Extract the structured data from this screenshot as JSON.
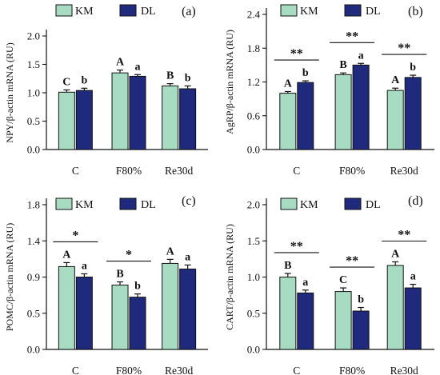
{
  "legend": {
    "km_label": "KM",
    "dl_label": "DL"
  },
  "colors": {
    "km": "#a7dcc3",
    "dl": "#1f2a7c",
    "axis": "#111111"
  },
  "chart_data": [
    {
      "panel": "(a)",
      "type": "bar",
      "ylabel": "NPY/β-actin mRNA (RU)",
      "ylim": [
        0,
        2.0
      ],
      "yticks": [
        "0.0",
        "0.5",
        "1.0",
        "1.5",
        "2.0"
      ],
      "categories": [
        "C",
        "F80%",
        "Re30d"
      ],
      "series": [
        {
          "name": "KM",
          "values": [
            1.01,
            1.35,
            1.12
          ],
          "errors": [
            0.04,
            0.05,
            0.04
          ],
          "letters": [
            "C",
            "A",
            "B"
          ]
        },
        {
          "name": "DL",
          "values": [
            1.04,
            1.29,
            1.07
          ],
          "errors": [
            0.04,
            0.03,
            0.05
          ],
          "letters": [
            "b",
            "a",
            "b"
          ]
        }
      ],
      "significance": []
    },
    {
      "panel": "(b)",
      "type": "bar",
      "ylabel": "AgRP/β-actin mRNA (RU)",
      "ylim": [
        0,
        2.4
      ],
      "yticks": [
        "0.0",
        "0.6",
        "1.2",
        "1.8",
        "2.4"
      ],
      "categories": [
        "C",
        "F80%",
        "Re30d"
      ],
      "series": [
        {
          "name": "KM",
          "values": [
            1.0,
            1.33,
            1.05
          ],
          "errors": [
            0.03,
            0.03,
            0.04
          ],
          "letters": [
            "A",
            "B",
            "A"
          ]
        },
        {
          "name": "DL",
          "values": [
            1.19,
            1.5,
            1.28
          ],
          "errors": [
            0.03,
            0.03,
            0.04
          ],
          "letters": [
            "b",
            "a",
            "b"
          ]
        }
      ],
      "significance": [
        "**",
        "**",
        "**"
      ]
    },
    {
      "panel": "(c)",
      "type": "bar",
      "ylabel": "POMC/β-actin mRNA (RU)",
      "ylim": [
        0,
        1.8
      ],
      "yticks": [
        "0.0",
        "0.5",
        "0.9",
        "1.4",
        "1.8"
      ],
      "categories": [
        "C",
        "F80%",
        "Re30d"
      ],
      "series": [
        {
          "name": "KM",
          "values": [
            1.03,
            0.8,
            1.07
          ],
          "errors": [
            0.05,
            0.04,
            0.05
          ],
          "letters": [
            "A",
            "B",
            "A"
          ]
        },
        {
          "name": "DL",
          "values": [
            0.9,
            0.65,
            1.0
          ],
          "errors": [
            0.04,
            0.04,
            0.05
          ],
          "letters": [
            "a",
            "b",
            "a"
          ]
        }
      ],
      "significance": [
        "*",
        "*",
        ""
      ]
    },
    {
      "panel": "(d)",
      "type": "bar",
      "ylabel": "CART/β-actin mRNA (RU)",
      "ylim": [
        0,
        2.0
      ],
      "yticks": [
        "0.0",
        "0.5",
        "1.0",
        "1.5",
        "2.0"
      ],
      "categories": [
        "C",
        "F80%",
        "Re30d"
      ],
      "series": [
        {
          "name": "KM",
          "values": [
            1.0,
            0.8,
            1.16
          ],
          "errors": [
            0.05,
            0.05,
            0.05
          ],
          "letters": [
            "B",
            "C",
            "A"
          ]
        },
        {
          "name": "DL",
          "values": [
            0.78,
            0.53,
            0.85
          ],
          "errors": [
            0.04,
            0.05,
            0.05
          ],
          "letters": [
            "a",
            "b",
            "a"
          ]
        }
      ],
      "significance": [
        "**",
        "**",
        "**"
      ]
    }
  ]
}
